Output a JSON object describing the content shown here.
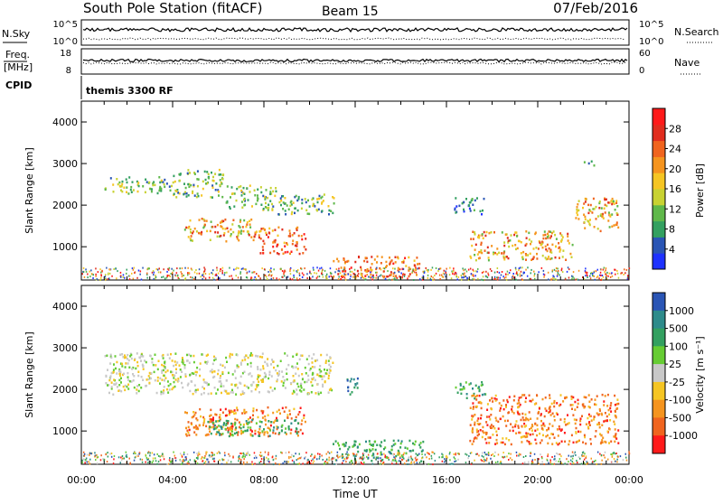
{
  "header": {
    "station": "South Pole Station (fitACF)",
    "beam": "Beam 15",
    "date": "07/Feb/2016"
  },
  "top_panels": {
    "nsky": {
      "label": "N.Sky",
      "tick_top": "10^5",
      "tick_bottom": "10^0"
    },
    "nsearch": {
      "label": "N.Search",
      "tick_top": "10^5",
      "tick_bottom": "10^0"
    },
    "freq": {
      "label_line1": "Freq.",
      "label_line2": "[MHz]",
      "tick_top": "18",
      "tick_bottom": "8"
    },
    "nave": {
      "label": "Nave",
      "tick_top": "60",
      "tick_bottom": "0"
    },
    "cpid": {
      "label": "CPID",
      "program": "themis 3300 RF"
    }
  },
  "chart_data": [
    {
      "type": "heatmap",
      "name": "power-panel",
      "title": "",
      "xlabel": "Time UT",
      "ylabel": "Slant Range [km]",
      "xlim": [
        0,
        24
      ],
      "ylim": [
        200,
        4500
      ],
      "x_ticks": [
        "00:00",
        "04:00",
        "08:00",
        "12:00",
        "16:00",
        "20:00",
        "00:00"
      ],
      "y_ticks": [
        "1000",
        "2000",
        "3000",
        "4000"
      ],
      "colorbar": {
        "label": "Power [dB]",
        "ticks": [
          "4",
          "8",
          "12",
          "16",
          "20",
          "24",
          "28"
        ],
        "colors": [
          "#1e32ff",
          "#2a55b5",
          "#33a060",
          "#5fb84a",
          "#c8d232",
          "#f5c523",
          "#f5941e",
          "#f0641e",
          "#e12d1e",
          "#ff1a1a"
        ]
      },
      "regions": [
        {
          "t": [
            1.0,
            4.0
          ],
          "r": [
            2300,
            2700
          ],
          "level": "medium"
        },
        {
          "t": [
            4.0,
            6.2
          ],
          "r": [
            2200,
            2900
          ],
          "level": "medium"
        },
        {
          "t": [
            6.3,
            8.5
          ],
          "r": [
            1900,
            2500
          ],
          "level": "medium"
        },
        {
          "t": [
            8.6,
            11.2
          ],
          "r": [
            1800,
            2300
          ],
          "level": "medium"
        },
        {
          "t": [
            4.5,
            7.5
          ],
          "r": [
            1150,
            1700
          ],
          "level": "high"
        },
        {
          "t": [
            7.5,
            9.8
          ],
          "r": [
            850,
            1500
          ],
          "level": "very-high"
        },
        {
          "t": [
            11.0,
            14.8
          ],
          "r": [
            300,
            800
          ],
          "level": "very-high"
        },
        {
          "t": [
            16.3,
            17.7
          ],
          "r": [
            1800,
            2200
          ],
          "level": "low"
        },
        {
          "t": [
            17.0,
            21.5
          ],
          "r": [
            700,
            1400
          ],
          "level": "high"
        },
        {
          "t": [
            21.5,
            23.5
          ],
          "r": [
            1400,
            2200
          ],
          "level": "high"
        },
        {
          "t": [
            22.0,
            22.5
          ],
          "r": [
            2950,
            3100
          ],
          "level": "low"
        }
      ]
    },
    {
      "type": "heatmap",
      "name": "velocity-panel",
      "title": "",
      "xlabel": "Time UT",
      "ylabel": "Slant Range [km]",
      "xlim": [
        0,
        24
      ],
      "ylim": [
        200,
        4500
      ],
      "x_ticks": [
        "00:00",
        "04:00",
        "08:00",
        "12:00",
        "16:00",
        "20:00",
        "00:00"
      ],
      "y_ticks": [
        "1000",
        "2000",
        "3000",
        "4000"
      ],
      "colorbar": {
        "label": "Velocity [m s⁻¹]",
        "ticks": [
          "1000",
          "500",
          "100",
          "25",
          "-25",
          "-100",
          "-500",
          "-1000"
        ],
        "colors": [
          "#2a55b5",
          "#2e8b8b",
          "#33a060",
          "#66cc33",
          "#c8c8c8",
          "#f5c523",
          "#f5941e",
          "#f0641e",
          "#ff1a1a"
        ]
      },
      "regions": [
        {
          "t": [
            1.0,
            11.0
          ],
          "r": [
            1900,
            2900
          ],
          "level": "near-zero"
        },
        {
          "t": [
            4.5,
            9.8
          ],
          "r": [
            900,
            1600
          ],
          "level": "away-medium"
        },
        {
          "t": [
            5.5,
            9.5
          ],
          "r": [
            900,
            1300
          ],
          "level": "toward-low"
        },
        {
          "t": [
            11.5,
            12.2
          ],
          "r": [
            1900,
            2300
          ],
          "level": "toward-high"
        },
        {
          "t": [
            11.0,
            15.0
          ],
          "r": [
            300,
            800
          ],
          "level": "toward-medium"
        },
        {
          "t": [
            16.3,
            17.7
          ],
          "r": [
            1800,
            2200
          ],
          "level": "toward-low"
        },
        {
          "t": [
            17.0,
            23.5
          ],
          "r": [
            700,
            1900
          ],
          "level": "away-medium"
        }
      ]
    }
  ]
}
